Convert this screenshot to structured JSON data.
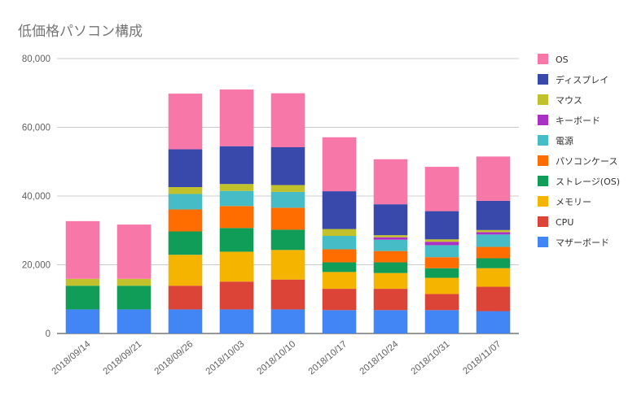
{
  "chart_data": {
    "type": "bar",
    "stacked": true,
    "title": "低価格パソコン構成",
    "categories": [
      "2018/09/14",
      "2018/09/21",
      "2018/09/26",
      "2018/10/03",
      "2018/10/10",
      "2018/10/17",
      "2018/10/24",
      "2018/10/31",
      "2018/11/07"
    ],
    "ylim": [
      0,
      80000
    ],
    "yticks": [
      "0",
      "20,000",
      "40,000",
      "60,000",
      "80,000"
    ],
    "legend_position": "right",
    "grid": true,
    "series": [
      {
        "name": "マザーボード",
        "color": "#4285f4",
        "values": [
          7000,
          7000,
          7000,
          7000,
          7000,
          6800,
          6800,
          6800,
          6500
        ]
      },
      {
        "name": "CPU",
        "color": "#db4437",
        "values": [
          0,
          0,
          6900,
          8100,
          8700,
          6200,
          6200,
          4700,
          7100
        ]
      },
      {
        "name": "メモリー",
        "color": "#f4b400",
        "values": [
          0,
          0,
          9000,
          8700,
          8600,
          4900,
          4600,
          4700,
          5400
        ]
      },
      {
        "name": "ストレージ(OS)",
        "color": "#0f9d58",
        "values": [
          6900,
          6900,
          6800,
          6900,
          5900,
          2800,
          3100,
          2800,
          2900
        ]
      },
      {
        "name": "パソコンケース",
        "color": "#ff6d00",
        "values": [
          0,
          0,
          6400,
          6400,
          6400,
          3800,
          3300,
          3200,
          3300
        ]
      },
      {
        "name": "電源",
        "color": "#46bdc6",
        "values": [
          0,
          0,
          4500,
          4400,
          4600,
          3900,
          3300,
          3500,
          3600
        ]
      },
      {
        "name": "キーボード",
        "color": "#ab30c4",
        "values": [
          0,
          0,
          0,
          0,
          0,
          0,
          700,
          1000,
          700
        ]
      },
      {
        "name": "マウス",
        "color": "#c0c12b",
        "values": [
          2000,
          2000,
          2000,
          2000,
          2000,
          2000,
          600,
          700,
          600
        ]
      },
      {
        "name": "ディスプレイ",
        "color": "#3949ab",
        "values": [
          0,
          0,
          11000,
          11000,
          11000,
          11000,
          9000,
          8200,
          8500
        ]
      },
      {
        "name": "OS",
        "color": "#f778a8",
        "values": [
          16800,
          15800,
          16200,
          16500,
          15700,
          15700,
          13100,
          12900,
          12900
        ]
      }
    ]
  }
}
